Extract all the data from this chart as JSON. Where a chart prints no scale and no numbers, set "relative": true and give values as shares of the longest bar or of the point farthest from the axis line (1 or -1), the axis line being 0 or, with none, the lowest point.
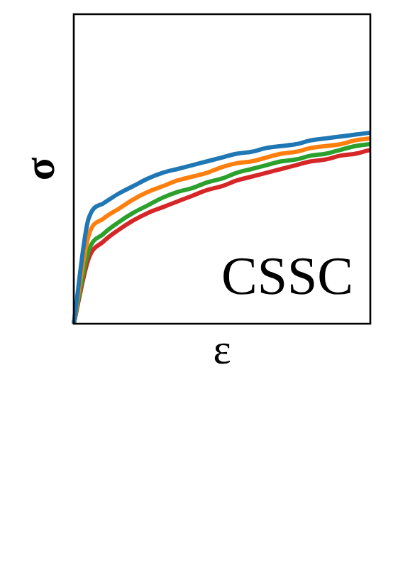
{
  "chart_data": {
    "type": "line",
    "relative": true,
    "xlabel": "ε",
    "ylabel": "σ",
    "annotations": [
      "CSSC"
    ],
    "grid": false,
    "legend": false,
    "marker": "none",
    "line_style": "solid",
    "categories": [
      null,
      null,
      null,
      null,
      null,
      null,
      null,
      null,
      null,
      null,
      null,
      null,
      null,
      null,
      null,
      null,
      null,
      null,
      null,
      null,
      null
    ],
    "series": [
      {
        "color": "#1f77b4",
        "values": [
          0,
          0.55,
          0.63,
          0.68,
          0.72,
          0.76,
          0.79,
          0.81,
          0.83,
          0.85,
          0.87,
          0.89,
          0.9,
          0.92,
          0.93,
          0.94,
          0.96,
          0.97,
          0.98,
          0.99,
          1
        ]
      },
      {
        "color": "#ff7f0e",
        "values": [
          0,
          0.46,
          0.55,
          0.6,
          0.65,
          0.69,
          0.72,
          0.75,
          0.77,
          0.79,
          0.82,
          0.84,
          0.85,
          0.87,
          0.89,
          0.9,
          0.92,
          0.93,
          0.94,
          0.96,
          0.97
        ]
      },
      {
        "color": "#2ca02c",
        "values": [
          0,
          0.38,
          0.47,
          0.53,
          0.58,
          0.62,
          0.66,
          0.69,
          0.71,
          0.74,
          0.76,
          0.79,
          0.81,
          0.83,
          0.85,
          0.86,
          0.88,
          0.89,
          0.91,
          0.93,
          0.94
        ]
      },
      {
        "color": "#d62728",
        "values": [
          0,
          0.34,
          0.43,
          0.49,
          0.54,
          0.58,
          0.61,
          0.64,
          0.67,
          0.7,
          0.72,
          0.75,
          0.77,
          0.79,
          0.81,
          0.83,
          0.85,
          0.86,
          0.88,
          0.89,
          0.91
        ]
      }
    ]
  }
}
